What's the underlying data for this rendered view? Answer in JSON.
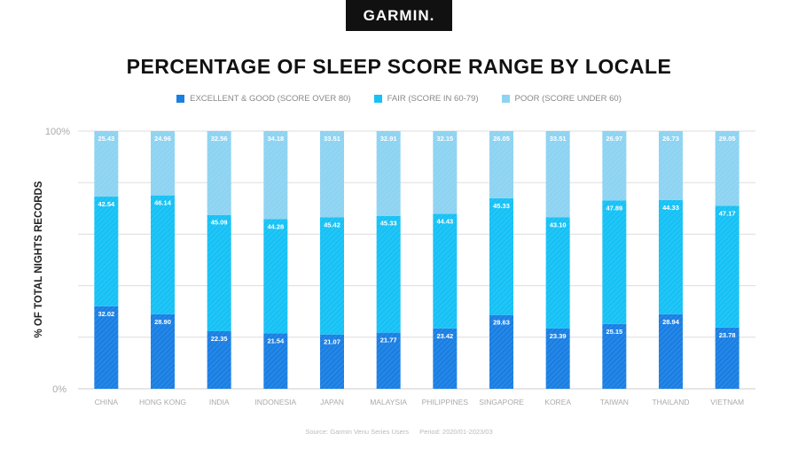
{
  "logo": "GARMIN.",
  "chart_data": {
    "type": "bar",
    "stacked": true,
    "title": "PERCENTAGE OF SLEEP SCORE RANGE BY LOCALE",
    "xlabel": "",
    "ylabel": "% OF TOTAL NIGHTS RECORDS",
    "ylim": [
      0,
      100
    ],
    "yticks": [
      "0%",
      "100%"
    ],
    "grid": true,
    "legend_position": "top",
    "categories": [
      "CHINA",
      "HONG KONG",
      "INDIA",
      "INDONESIA",
      "JAPAN",
      "MALAYSIA",
      "PHILIPPINES",
      "SINGAPORE",
      "KOREA",
      "TAIWAN",
      "THAILAND",
      "VIETNAM"
    ],
    "series": [
      {
        "name": "EXCELLENT & GOOD (SCORE OVER 80)",
        "color": "#1a7fe3",
        "values": [
          32.02,
          28.9,
          22.35,
          21.54,
          21.07,
          21.77,
          23.42,
          28.63,
          23.39,
          25.15,
          28.94,
          23.78
        ]
      },
      {
        "name": "FAIR (SCORE IN 60-79)",
        "color": "#16c1f5",
        "values": [
          42.54,
          46.14,
          45.09,
          44.28,
          45.42,
          45.33,
          44.43,
          45.33,
          43.1,
          47.89,
          44.33,
          47.17
        ]
      },
      {
        "name": "POOR (SCORE UNDER 60)",
        "color": "#8dd3f2",
        "values": [
          25.43,
          24.96,
          32.56,
          34.18,
          33.51,
          32.91,
          32.15,
          26.05,
          33.51,
          26.97,
          26.73,
          29.05
        ]
      }
    ]
  },
  "footer": {
    "source": "Source: Garmin Venu Series Users",
    "period": "Period: 2020/01-2023/03"
  }
}
